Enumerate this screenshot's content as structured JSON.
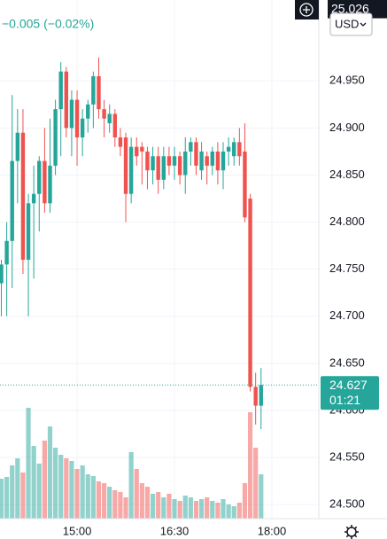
{
  "chart_data": {
    "type": "candlestick",
    "change_label": "−0.005 (−0.02%)",
    "currency": "USD",
    "marker_price": 25.026,
    "last_price": 24.627,
    "countdown": "01:21",
    "up_color": "#26a69a",
    "down_color": "#ef5350",
    "grid": true,
    "ylim": [
      24.485,
      25.036
    ],
    "yticks": [
      {
        "value": 24.5,
        "label": "24.500"
      },
      {
        "value": 24.55,
        "label": "24.550"
      },
      {
        "value": 24.6,
        "label": "24.600"
      },
      {
        "value": 24.65,
        "label": "24.650"
      },
      {
        "value": 24.7,
        "label": "24.700"
      },
      {
        "value": 24.75,
        "label": "24.750"
      },
      {
        "value": 24.8,
        "label": "24.800"
      },
      {
        "value": 24.85,
        "label": "24.850"
      },
      {
        "value": 24.9,
        "label": "24.900"
      },
      {
        "value": 24.95,
        "label": "24.950"
      }
    ],
    "volume_ylim": [
      0,
      160
    ],
    "categories": [
      null,
      null,
      null,
      null,
      null,
      null,
      null,
      null,
      null,
      null,
      null,
      null,
      null,
      null,
      "15:00",
      null,
      null,
      null,
      null,
      null,
      null,
      null,
      null,
      null,
      null,
      null,
      null,
      null,
      null,
      null,
      null,
      null,
      "16:30",
      null,
      null,
      null,
      null,
      null,
      null,
      null,
      null,
      null,
      null,
      null,
      null,
      null,
      null,
      null,
      null,
      null,
      "18:00"
    ],
    "open": [
      24.735,
      24.755,
      24.78,
      24.865,
      24.895,
      24.76,
      24.82,
      24.83,
      24.865,
      24.82,
      24.86,
      24.92,
      24.96,
      24.9,
      24.93,
      24.89,
      24.91,
      24.925,
      24.955,
      24.92,
      24.905,
      24.915,
      24.89,
      24.89,
      24.83,
      24.88,
      24.88,
      24.875,
      24.855,
      24.87,
      24.845,
      24.87,
      24.86,
      24.87,
      24.85,
      24.875,
      24.885,
      24.855,
      24.87,
      24.86,
      24.875,
      24.855,
      24.875,
      24.87,
      24.885,
      24.875,
      24.825,
      24.625,
      24.605,
      null,
      null
    ],
    "high": [
      24.76,
      24.8,
      24.935,
      24.92,
      24.92,
      24.83,
      24.86,
      24.87,
      24.9,
      24.91,
      24.93,
      24.97,
      24.965,
      24.94,
      24.94,
      24.92,
      24.93,
      24.96,
      24.975,
      24.93,
      24.925,
      24.92,
      24.9,
      24.895,
      24.89,
      24.89,
      24.885,
      24.88,
      24.88,
      24.88,
      24.88,
      24.88,
      24.88,
      24.875,
      24.89,
      24.89,
      24.89,
      24.885,
      24.875,
      24.88,
      24.885,
      24.885,
      24.89,
      24.89,
      24.9,
      24.905,
      24.83,
      24.64,
      24.645,
      null,
      null
    ],
    "low": [
      24.7,
      24.7,
      24.73,
      24.82,
      24.745,
      24.7,
      24.74,
      24.79,
      24.81,
      24.81,
      24.85,
      24.87,
      24.89,
      24.87,
      24.86,
      24.87,
      24.895,
      24.9,
      24.91,
      24.89,
      24.895,
      24.88,
      24.87,
      24.8,
      24.82,
      24.86,
      24.84,
      24.835,
      24.84,
      24.83,
      24.835,
      24.85,
      24.845,
      24.84,
      24.83,
      24.86,
      24.85,
      24.845,
      24.84,
      24.85,
      24.84,
      24.835,
      24.86,
      24.86,
      24.86,
      24.8,
      24.62,
      24.585,
      24.58,
      null,
      null
    ],
    "close": [
      24.755,
      24.78,
      24.865,
      24.895,
      24.76,
      24.82,
      24.83,
      24.865,
      24.82,
      24.86,
      24.92,
      24.96,
      24.9,
      24.93,
      24.89,
      24.91,
      24.925,
      24.955,
      24.92,
      24.91,
      24.915,
      24.89,
      24.88,
      24.83,
      24.88,
      24.87,
      24.875,
      24.855,
      24.87,
      24.845,
      24.87,
      24.86,
      24.87,
      24.85,
      24.875,
      24.885,
      24.86,
      24.875,
      24.86,
      24.875,
      24.855,
      24.875,
      24.88,
      24.885,
      24.87,
      24.805,
      24.625,
      24.605,
      24.627,
      null,
      null
    ],
    "volume": [
      45,
      47,
      60,
      68,
      52,
      125,
      82,
      62,
      88,
      104,
      80,
      72,
      68,
      65,
      56,
      60,
      50,
      48,
      42,
      40,
      36,
      32,
      30,
      24,
      75,
      56,
      40,
      36,
      28,
      30,
      24,
      28,
      22,
      20,
      26,
      24,
      20,
      22,
      24,
      20,
      18,
      22,
      16,
      14,
      18,
      40,
      120,
      80,
      50,
      null,
      null
    ]
  }
}
